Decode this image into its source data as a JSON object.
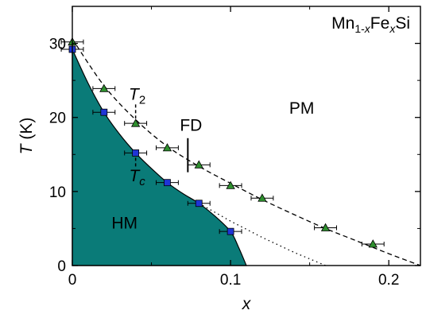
{
  "chart_data": {
    "type": "scatter",
    "title": {
      "base": "Mn",
      "sub1": "1-",
      "subvar1": "x",
      "mid": "Fe",
      "subvar2": "x",
      "tail": "Si"
    },
    "xlabel": "x",
    "ylabel": {
      "symbol": "T",
      "unit": " (K)"
    },
    "xlim": [
      0,
      0.22
    ],
    "ylim": [
      0,
      35
    ],
    "x_ticks": [
      0,
      0.1,
      0.2
    ],
    "x_tick_labels": [
      "0",
      "0.1",
      "0.2"
    ],
    "y_ticks": [
      0,
      10,
      20,
      30
    ],
    "y_tick_labels": [
      "0",
      "10",
      "20",
      "30"
    ],
    "grid": false,
    "legend": "none",
    "colors": {
      "hm_fill": "#0a7b78",
      "tc_marker": "#1f35d6",
      "t2_marker": "#2e8f2e",
      "line": "#000000"
    },
    "series": [
      {
        "label_symbol": "T",
        "label_sub": "c",
        "marker": "square",
        "x": [
          0.0,
          0.02,
          0.04,
          0.06,
          0.08,
          0.1
        ],
        "y": [
          29.2,
          20.7,
          15.2,
          11.2,
          8.4,
          4.6
        ],
        "xerr": 0.007,
        "yerr": 0.3
      },
      {
        "label_symbol": "T",
        "label_sub": "2",
        "marker": "triangle",
        "x": [
          0.0,
          0.02,
          0.04,
          0.06,
          0.08,
          0.1,
          0.12,
          0.16,
          0.19
        ],
        "y": [
          30.2,
          23.9,
          19.2,
          15.9,
          13.6,
          10.8,
          9.1,
          5.1,
          2.9
        ],
        "xerr": 0.007,
        "yerr": 0.4
      }
    ],
    "phase_boundary_hm": {
      "x": [
        0.0,
        0.01,
        0.02,
        0.03,
        0.04,
        0.05,
        0.06,
        0.07,
        0.08,
        0.09,
        0.1,
        0.105,
        0.11
      ],
      "y": [
        29.2,
        24.6,
        20.7,
        17.7,
        15.2,
        13.1,
        11.2,
        9.7,
        8.4,
        6.7,
        4.6,
        2.5,
        0.0
      ]
    },
    "t2_dashed_curve": {
      "x": [
        0.0,
        0.02,
        0.04,
        0.06,
        0.08,
        0.1,
        0.12,
        0.14,
        0.16,
        0.18,
        0.2,
        0.22
      ],
      "y": [
        30.6,
        24.3,
        19.7,
        16.1,
        13.4,
        11.1,
        8.9,
        6.9,
        5.0,
        3.3,
        1.6,
        0.0
      ]
    },
    "dotted_extrapolation": {
      "x": [
        0.08,
        0.09,
        0.1,
        0.11,
        0.12,
        0.13,
        0.14,
        0.15,
        0.16
      ],
      "y": [
        8.4,
        7.2,
        6.0,
        4.9,
        3.8,
        2.8,
        1.8,
        0.9,
        0.0
      ]
    },
    "annotations": [
      {
        "text": "PM",
        "x": 0.145,
        "y": 20.5
      },
      {
        "text": "HM",
        "x": 0.033,
        "y": 5.0
      },
      {
        "text": "FD",
        "x": 0.075,
        "y": 18.2
      }
    ],
    "fd_marker": {
      "x": 0.073,
      "y_from": 12.6,
      "y_to": 17.2
    },
    "label_positions": {
      "t2": {
        "x": 0.041,
        "y": 22.4
      },
      "tc": {
        "x": 0.041,
        "y": 11.4
      }
    }
  }
}
